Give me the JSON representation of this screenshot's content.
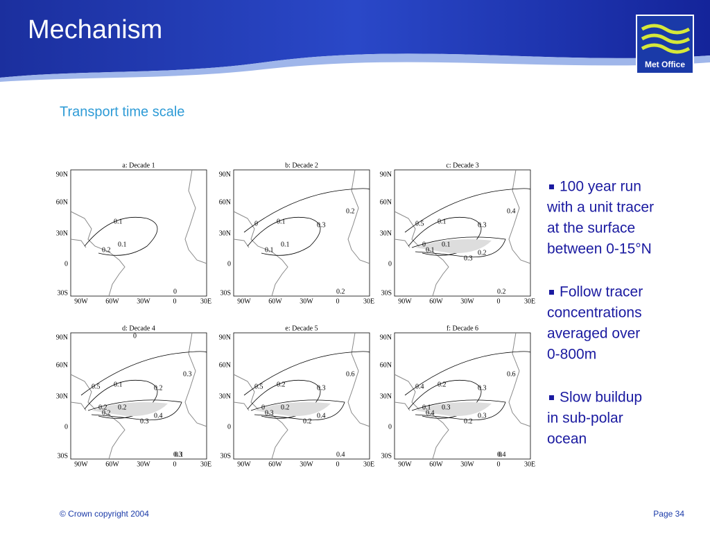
{
  "header": {
    "title": "Mechanism",
    "logo": "Met Office"
  },
  "subtitle": "Transport time scale",
  "maps": {
    "lat_labels": [
      "90N",
      "60N",
      "30N",
      "0",
      "30S"
    ],
    "lon_labels": [
      "90W",
      "60W",
      "30W",
      "0",
      "30E"
    ],
    "panels": [
      {
        "title": "a: Decade 1",
        "contours": [
          "0.1",
          "0.1",
          "0.2",
          "0"
        ]
      },
      {
        "title": "b:  Decade 2",
        "contours": [
          "0.1",
          "0.1",
          "0.1",
          "0.2",
          "0.3",
          "0.2",
          "0"
        ]
      },
      {
        "title": "c:  Decade 3",
        "contours": [
          "0.1",
          "0.1",
          "0.1",
          "0.2",
          "0.3",
          "0.4",
          "0.5",
          "0.2",
          "0.3",
          "0"
        ]
      },
      {
        "title": "d:  Decade 4",
        "contours": [
          "0.1",
          "0.2",
          "0.2",
          "0.3",
          "0.2",
          "0.3",
          "0.5",
          "0.4",
          "0.3",
          "0.2",
          "0.1",
          "0"
        ]
      },
      {
        "title": "e:  Decade 5",
        "contours": [
          "0.2",
          "0.2",
          "0.3",
          "0.4",
          "0.3",
          "0.6",
          "0.5",
          "0.4",
          "0.2",
          "0"
        ]
      },
      {
        "title": "f:  Decade 6",
        "contours": [
          "0.2",
          "0.3",
          "0.4",
          "0.4",
          "0.3",
          "0.6",
          "0.4",
          "0.3",
          "0.2",
          "0.1",
          "0"
        ]
      }
    ]
  },
  "bullets": [
    [
      "100 year run",
      "with a unit tracer",
      "at the surface",
      "between 0-15°N"
    ],
    [
      "Follow tracer",
      "concentrations",
      "averaged over",
      "0-800m"
    ],
    [
      "Slow buildup",
      "in sub-polar",
      "ocean"
    ]
  ],
  "footer": {
    "copyright": "© Crown copyright 2004",
    "page": "Page 34"
  }
}
